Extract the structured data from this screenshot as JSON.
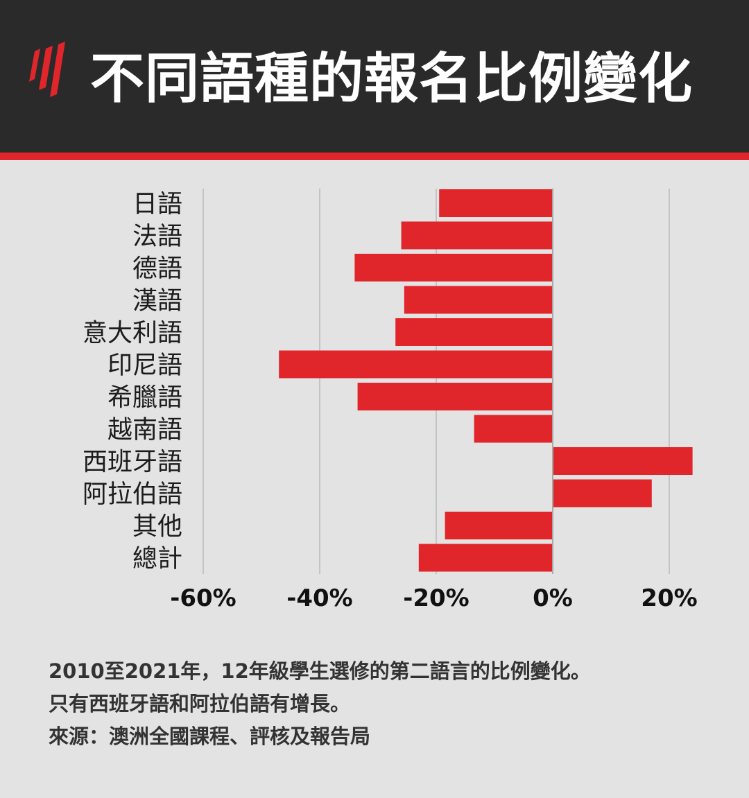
{
  "header": {
    "title": "不同語種的報名比例變化",
    "logo_icon": "sbs-logo-icon"
  },
  "colors": {
    "header_bg": "#2a2a2b",
    "accent": "#e0262b",
    "background": "#e3e3e3",
    "bar": "#e0262b",
    "grid": "#c4c4c4"
  },
  "chart_data": {
    "type": "bar",
    "orientation": "horizontal",
    "categories": [
      "日語",
      "法語",
      "德語",
      "漢語",
      "意大利語",
      "印尼語",
      "希臘語",
      "越南語",
      "西班牙語",
      "阿拉伯語",
      "其他",
      "總計"
    ],
    "values": [
      -19.5,
      -26,
      -34,
      -25.5,
      -27,
      -47,
      -33.5,
      -13.5,
      24,
      17,
      -18.5,
      -23
    ],
    "xlim": [
      -60,
      20
    ],
    "xticks": [
      -60,
      -40,
      -20,
      0,
      20
    ],
    "xtick_labels": [
      "-60%",
      "-40%",
      "-20%",
      "0%",
      "20%"
    ],
    "grid": true,
    "title": "",
    "xlabel": "",
    "ylabel": ""
  },
  "caption": {
    "line1": "2010至2021年，12年級學生選修的第二語言的比例變化。",
    "line2": "只有西班牙語和阿拉伯語有增長。",
    "line3": "來源：澳洲全國課程、評核及報告局"
  }
}
